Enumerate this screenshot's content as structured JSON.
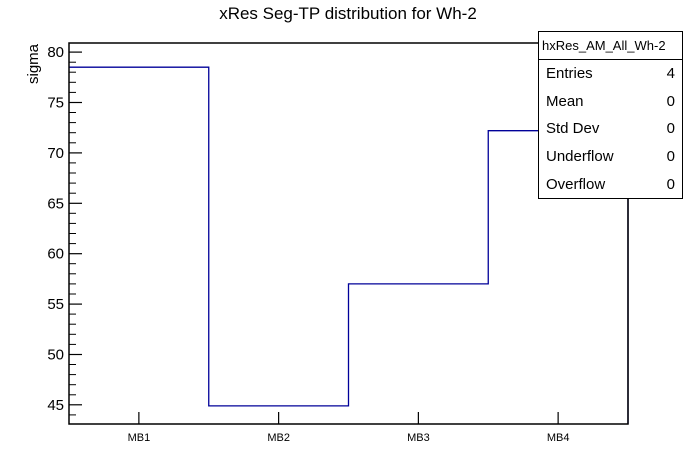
{
  "title": "xRes Seg-TP distribution for Wh-2",
  "stats_box": {
    "title": "hxRes_AM_All_Wh-2",
    "rows": [
      {
        "label": "Entries",
        "value": "4"
      },
      {
        "label": "Mean",
        "value": "0"
      },
      {
        "label": "Std Dev",
        "value": "0"
      },
      {
        "label": "Underflow",
        "value": "0"
      },
      {
        "label": "Overflow",
        "value": "0"
      }
    ]
  },
  "colors": {
    "histogram_line": "#000099",
    "axis": "#000000",
    "text": "#000000",
    "background": "#ffffff"
  },
  "chart_data": {
    "type": "bar",
    "subtype": "root-step-histogram",
    "title": "xRes Seg-TP distribution for Wh-2",
    "categories": [
      "MB1",
      "MB2",
      "MB3",
      "MB4"
    ],
    "values": [
      78.5,
      44.9,
      57.0,
      72.2
    ],
    "xlabel": "",
    "ylabel": "sigma",
    "ylim": [
      43.1,
      80.9
    ],
    "y_major_ticks": [
      45,
      50,
      55,
      60,
      65,
      70,
      75,
      80
    ],
    "y_minor_tick_step": 1,
    "grid": false,
    "legend": false
  }
}
